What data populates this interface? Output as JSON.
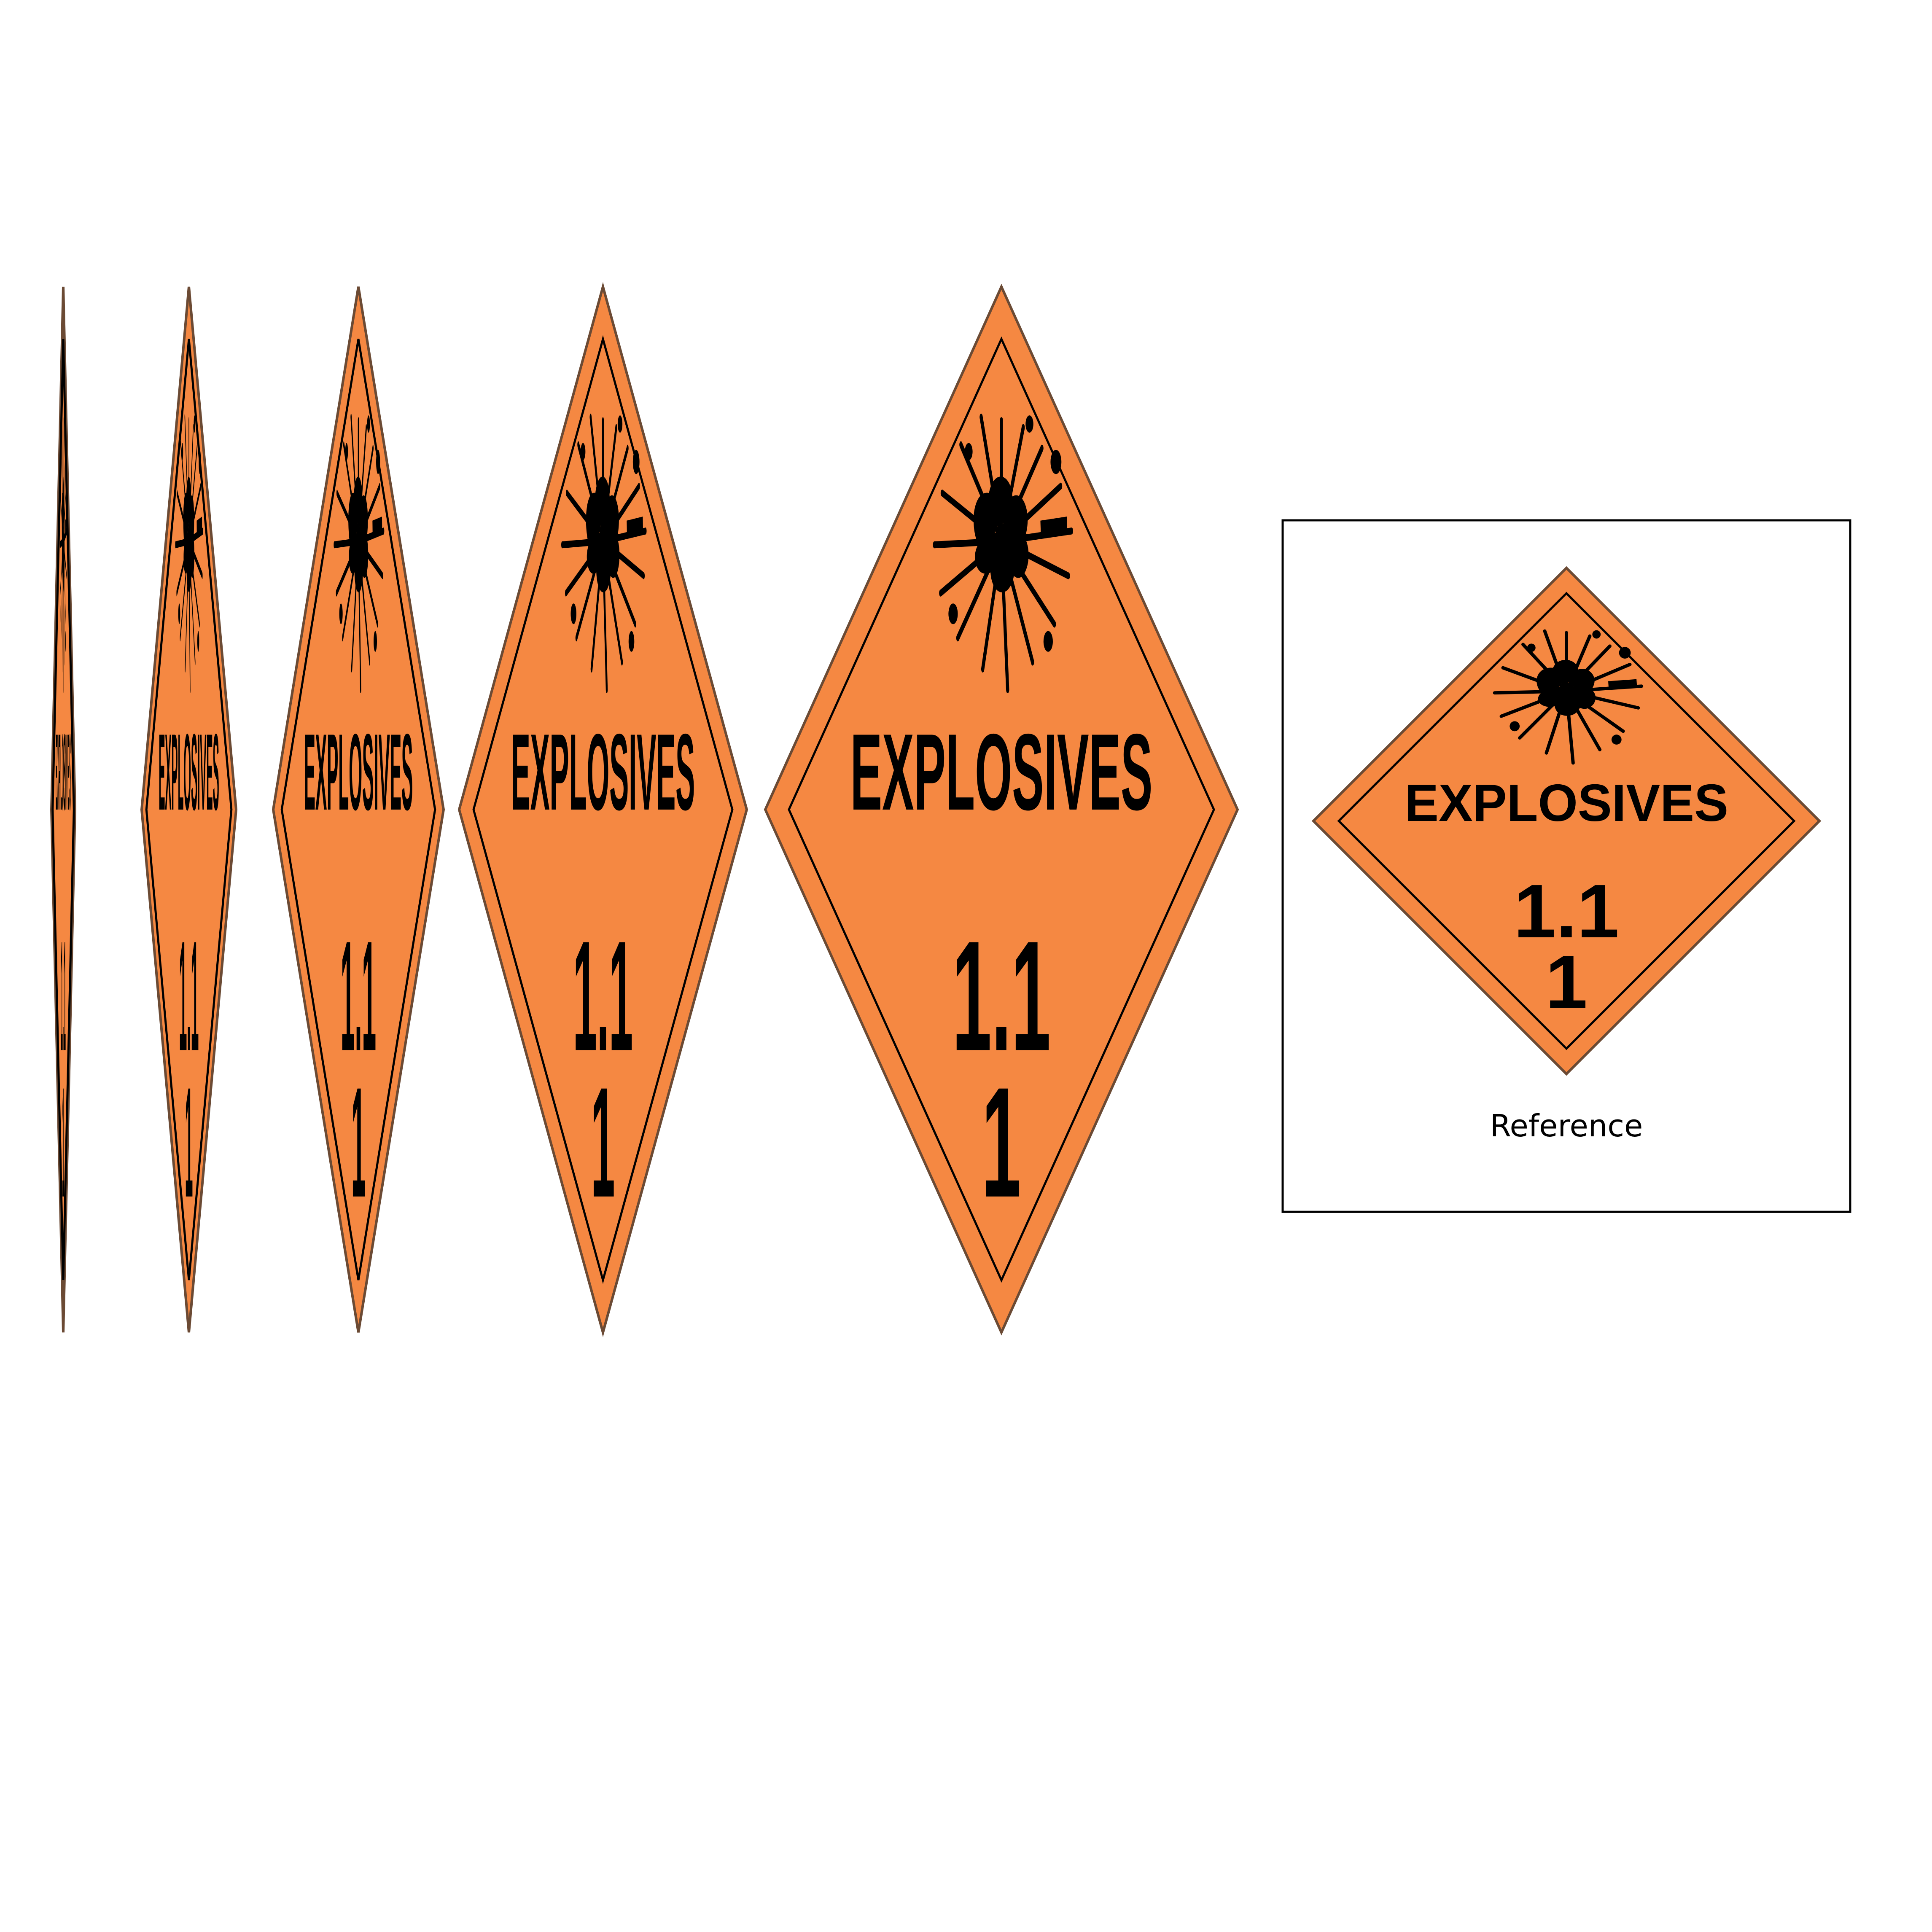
{
  "placard": {
    "title": "EXPLOSIVES",
    "division": "1.1",
    "compatibility": "1",
    "symbol": "exploding-bomb-icon",
    "colors": {
      "fill": "#F58842",
      "ink": "#000000",
      "edge": "#6B4A34"
    }
  },
  "reference_caption": "Reference"
}
